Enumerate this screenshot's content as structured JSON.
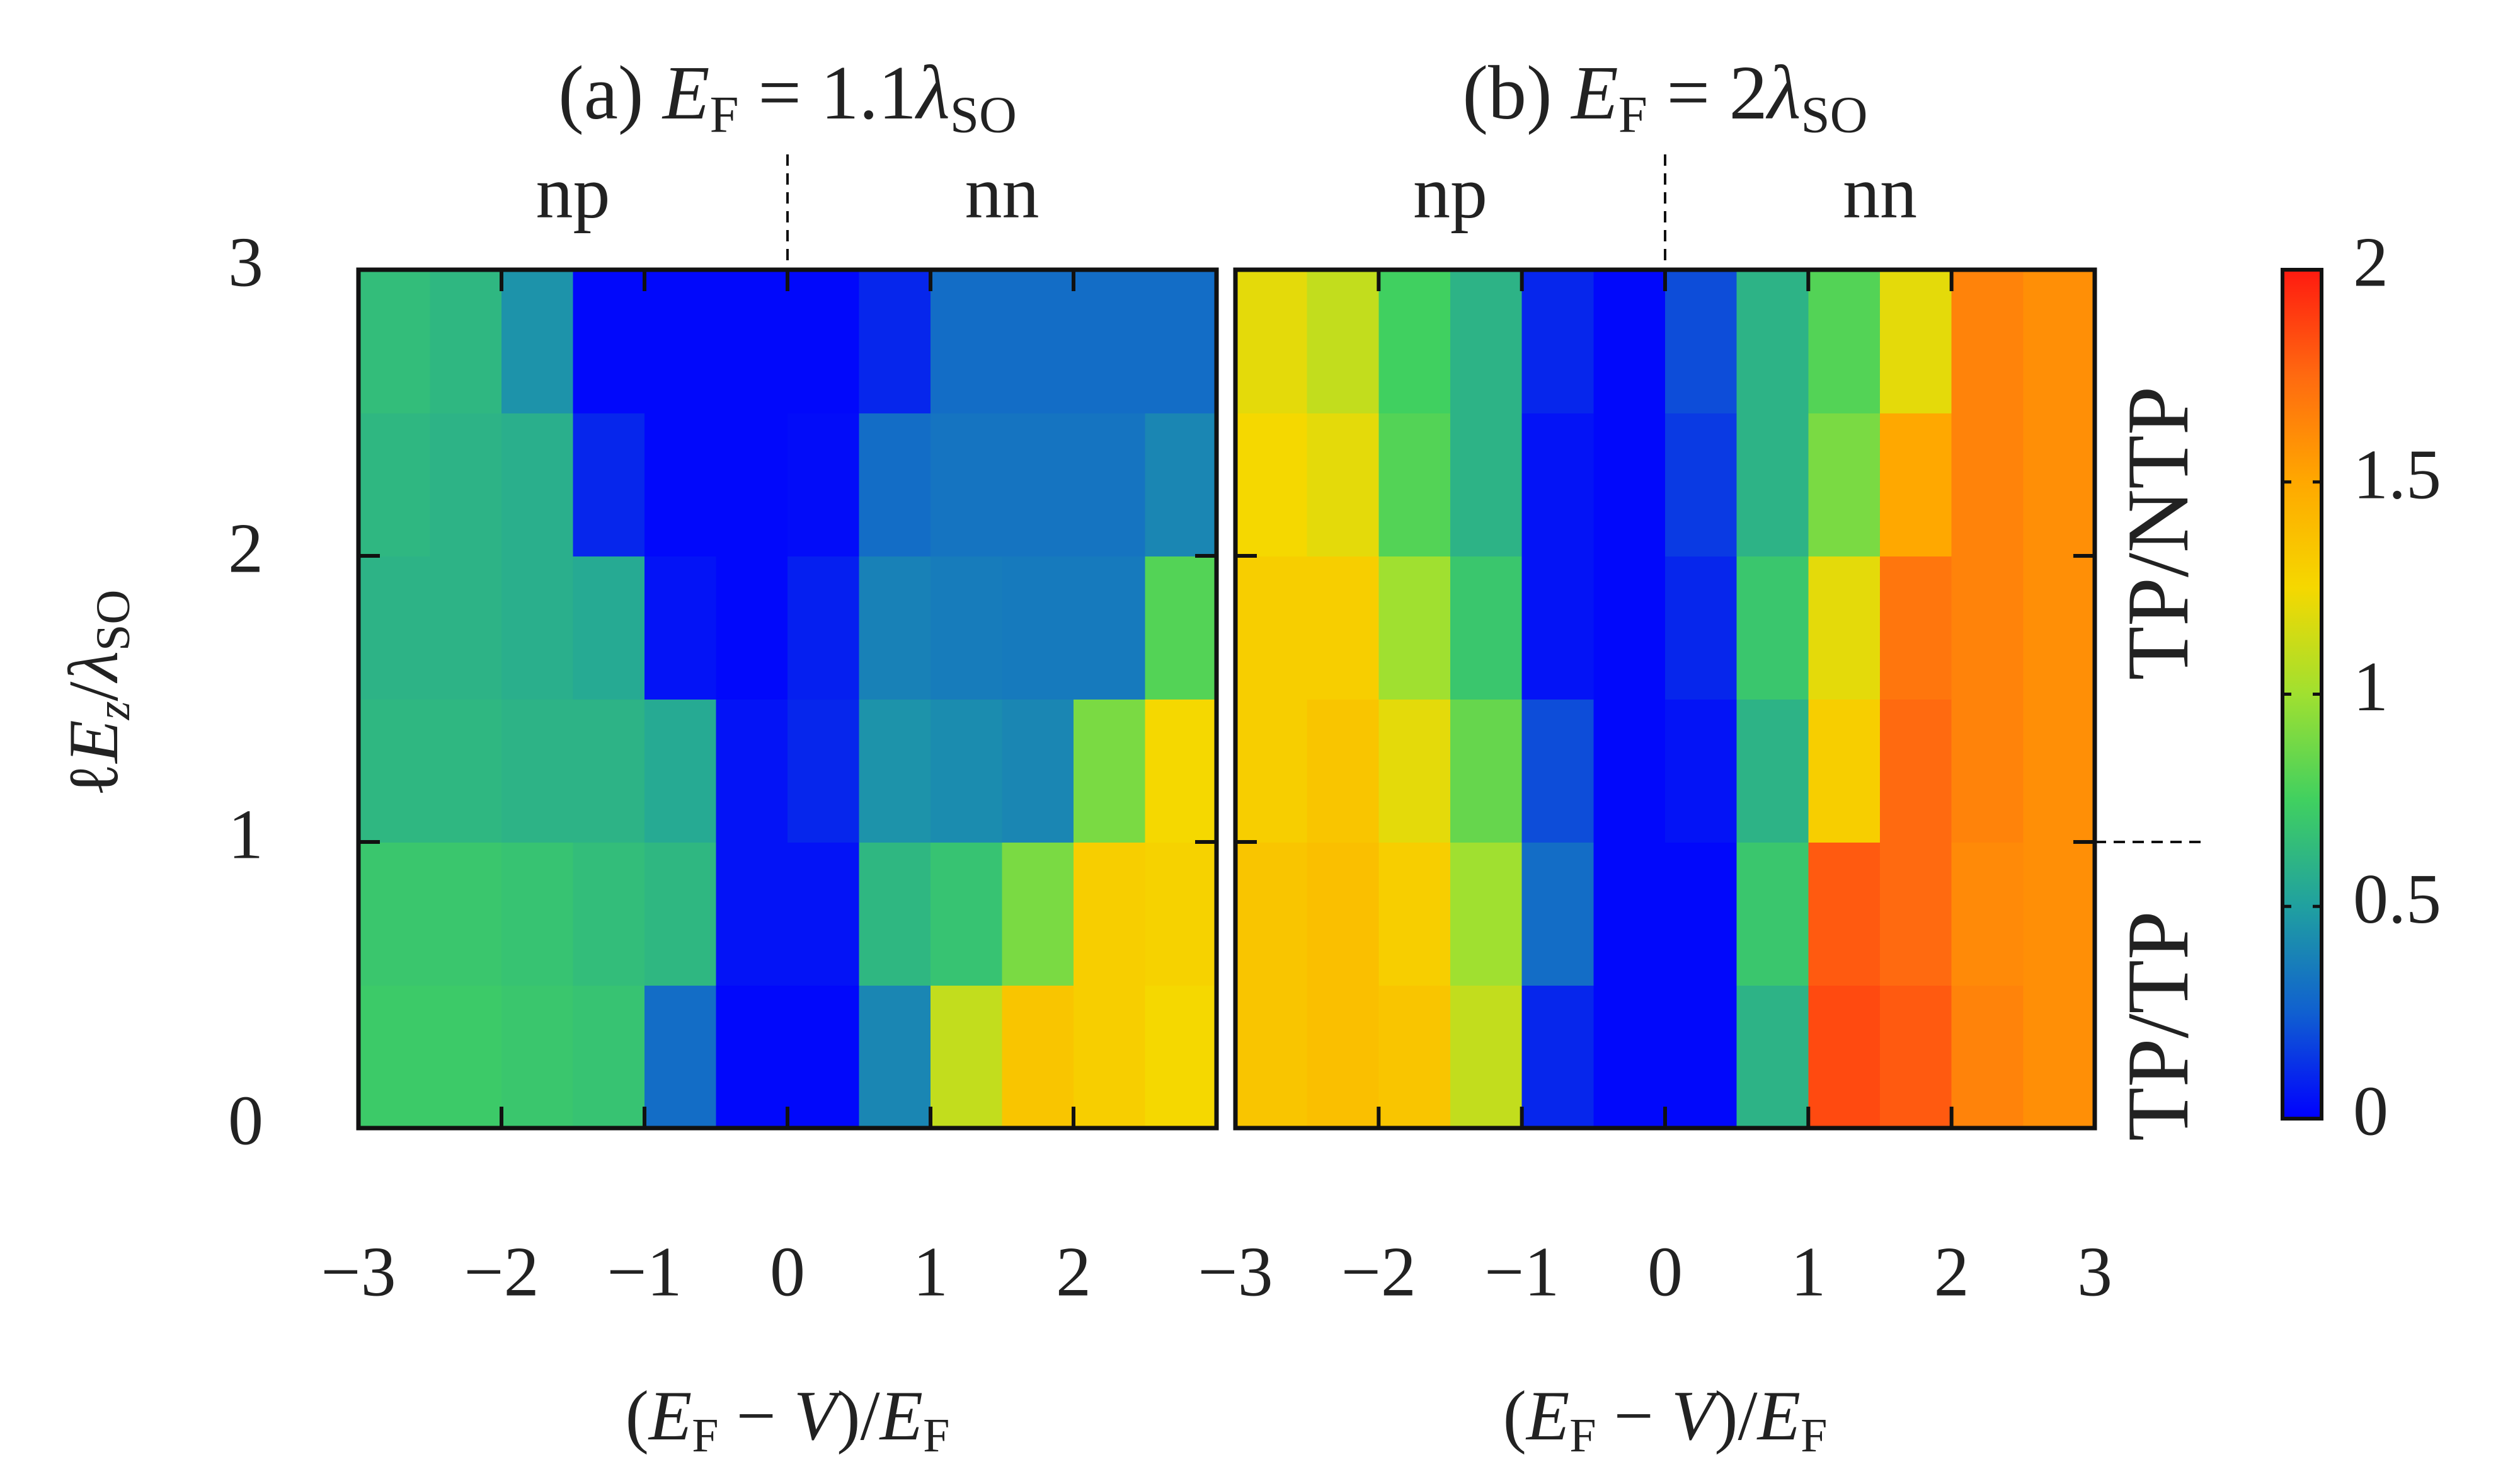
{
  "chart_data": [
    {
      "type": "heatmap",
      "title": [
        {
          "text": "(a) "
        },
        {
          "text": "E",
          "italic": true
        },
        {
          "text": "F",
          "sub": true
        },
        {
          "text": " = 1.1"
        },
        {
          "text": "λ",
          "italic": true
        },
        {
          "text": "SO",
          "sub": true
        }
      ],
      "xlabel": [
        {
          "text": "("
        },
        {
          "text": "E",
          "italic": true
        },
        {
          "text": "F",
          "sub": true
        },
        {
          "text": " − "
        },
        {
          "text": "V",
          "italic": true
        },
        {
          "text": ")/"
        },
        {
          "text": "E",
          "italic": true
        },
        {
          "text": "F",
          "sub": true
        }
      ],
      "ylabel": [
        {
          "text": "ℓ"
        },
        {
          "text": "E",
          "italic": true
        },
        {
          "text": "z",
          "italic": true,
          "sub": true
        },
        {
          "text": "/"
        },
        {
          "text": "λ",
          "italic": true
        },
        {
          "text": "SO",
          "sub": true
        }
      ],
      "xlim": [
        -3,
        3
      ],
      "ylim": [
        0,
        3
      ],
      "xticks": [
        {
          "value": -3,
          "label": "−3"
        },
        {
          "value": -2,
          "label": "−2"
        },
        {
          "value": -1,
          "label": "−1"
        },
        0,
        1,
        2
      ],
      "yticks": [
        0,
        1,
        2,
        3
      ],
      "show_ytick_labels": true,
      "divider_x": 0,
      "region_labels": [
        {
          "text": "np",
          "color": "#ff0000"
        },
        {
          "text": "nn",
          "color": "#0000ff"
        }
      ],
      "xbins": [
        -3,
        -2.5,
        -2,
        -1.5,
        -1,
        -0.5,
        0,
        0.5,
        1,
        1.5,
        2,
        2.5,
        3
      ],
      "ybins": [
        0,
        0.5,
        1,
        1.5,
        2,
        2.5,
        3
      ],
      "z": [
        [
          0.72,
          0.72,
          0.7,
          0.68,
          0.3,
          0.02,
          0.02,
          0.4,
          1.1,
          1.35,
          1.3,
          1.25
        ],
        [
          0.7,
          0.7,
          0.68,
          0.65,
          0.62,
          0.05,
          0.05,
          0.62,
          0.68,
          0.9,
          1.3,
          1.28
        ],
        [
          0.62,
          0.62,
          0.6,
          0.6,
          0.55,
          0.05,
          0.1,
          0.45,
          0.42,
          0.4,
          0.9,
          1.25
        ],
        [
          0.6,
          0.6,
          0.58,
          0.55,
          0.05,
          0.02,
          0.08,
          0.38,
          0.36,
          0.35,
          0.35,
          0.8
        ],
        [
          0.62,
          0.6,
          0.58,
          0.1,
          0.02,
          0.02,
          0.03,
          0.3,
          0.33,
          0.33,
          0.33,
          0.4
        ],
        [
          0.65,
          0.62,
          0.45,
          0.02,
          0.02,
          0.02,
          0.02,
          0.1,
          0.3,
          0.3,
          0.3,
          0.3
        ]
      ]
    },
    {
      "type": "heatmap",
      "title": [
        {
          "text": "(b) "
        },
        {
          "text": "E",
          "italic": true
        },
        {
          "text": "F",
          "sub": true
        },
        {
          "text": " = 2"
        },
        {
          "text": "λ",
          "italic": true
        },
        {
          "text": "SO",
          "sub": true
        }
      ],
      "xlabel": [
        {
          "text": "("
        },
        {
          "text": "E",
          "italic": true
        },
        {
          "text": "F",
          "sub": true
        },
        {
          "text": " − "
        },
        {
          "text": "V",
          "italic": true
        },
        {
          "text": ")/"
        },
        {
          "text": "E",
          "italic": true
        },
        {
          "text": "F",
          "sub": true
        }
      ],
      "xlim": [
        -3,
        3
      ],
      "ylim": [
        0,
        3
      ],
      "xticks": [
        {
          "value": -3,
          "label": "−3"
        },
        {
          "value": -2,
          "label": "−2"
        },
        {
          "value": -1,
          "label": "−1"
        },
        0,
        1,
        2,
        3
      ],
      "yticks": [
        0,
        1,
        2,
        3
      ],
      "show_ytick_labels": false,
      "divider_x": 0,
      "divider_y": 1,
      "region_labels": [
        {
          "text": "np",
          "color": "#ff0000"
        },
        {
          "text": "nn",
          "color": "#0000ff"
        }
      ],
      "side_labels": [
        {
          "text": "TP/NTP",
          "color": "#ff0000"
        },
        {
          "text": "TP/TP",
          "color": "#0000ff"
        }
      ],
      "xbins": [
        -3,
        -2.5,
        -2,
        -1.5,
        -1,
        -0.5,
        0,
        0.5,
        1,
        1.5,
        2,
        2.5,
        3
      ],
      "ybins": [
        0,
        0.5,
        1,
        1.5,
        2,
        2.5,
        3
      ],
      "z": [
        [
          1.35,
          1.38,
          1.35,
          1.1,
          0.1,
          0.02,
          0.02,
          0.6,
          1.85,
          1.8,
          1.65,
          1.6
        ],
        [
          1.35,
          1.38,
          1.3,
          1.0,
          0.3,
          0.02,
          0.02,
          0.7,
          1.8,
          1.75,
          1.62,
          1.6
        ],
        [
          1.3,
          1.35,
          1.2,
          0.85,
          0.2,
          0.02,
          0.05,
          0.6,
          1.3,
          1.75,
          1.65,
          1.6
        ],
        [
          1.3,
          1.3,
          1.0,
          0.7,
          0.05,
          0.02,
          0.1,
          0.7,
          1.2,
          1.7,
          1.65,
          1.6
        ],
        [
          1.25,
          1.2,
          0.8,
          0.6,
          0.05,
          0.02,
          0.15,
          0.6,
          0.9,
          1.5,
          1.65,
          1.6
        ],
        [
          1.2,
          1.1,
          0.75,
          0.6,
          0.1,
          0.02,
          0.2,
          0.6,
          0.8,
          1.2,
          1.65,
          1.6
        ]
      ]
    }
  ],
  "colorbar": {
    "lim": [
      0,
      2
    ],
    "ticks": [
      0,
      0.5,
      1,
      1.5,
      2
    ],
    "colorscale": [
      [
        0,
        "#0000ff"
      ],
      [
        0.25,
        "#1060d0"
      ],
      [
        0.5,
        "#20a0a0"
      ],
      [
        0.75,
        "#40d060"
      ],
      [
        1,
        "#a0e030"
      ],
      [
        1.25,
        "#f5d800"
      ],
      [
        1.5,
        "#ffa800"
      ],
      [
        1.75,
        "#ff6a10"
      ],
      [
        2,
        "#ff1a10"
      ]
    ]
  }
}
